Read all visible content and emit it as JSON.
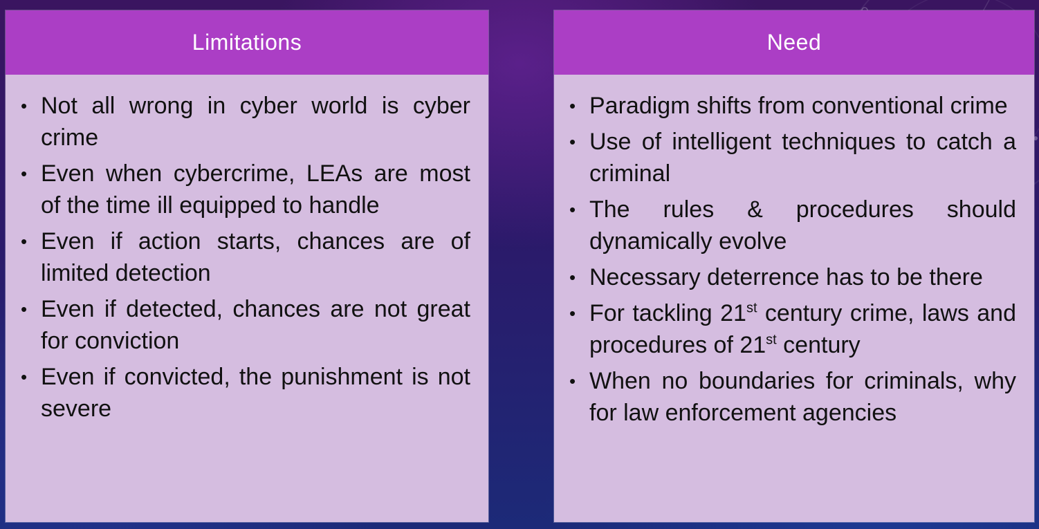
{
  "limitations": {
    "title": "Limitations",
    "items": [
      "Not all wrong in cyber world is cyber crime",
      "Even when cybercrime, LEAs are most of the time ill equipped to handle",
      "Even if action starts, chances are of limited detection",
      "Even if detected, chances are not great for conviction",
      "Even if convicted, the punishment is not severe"
    ]
  },
  "need": {
    "title": "Need",
    "items": [
      "Paradigm shifts from conventional crime",
      "Use of intelligent techniques to catch a criminal",
      "The rules & procedures should dynamically evolve",
      "Necessary deterrence has to be there"
    ],
    "item_21st": {
      "pre": "For tackling 21",
      "sup1": "st",
      "mid": " century crime, laws and procedures of 21",
      "sup2": "st",
      "post": " century"
    },
    "last_item": "When no boundaries for criminals, why for law enforcement agencies"
  },
  "bullet_glyph": "•"
}
